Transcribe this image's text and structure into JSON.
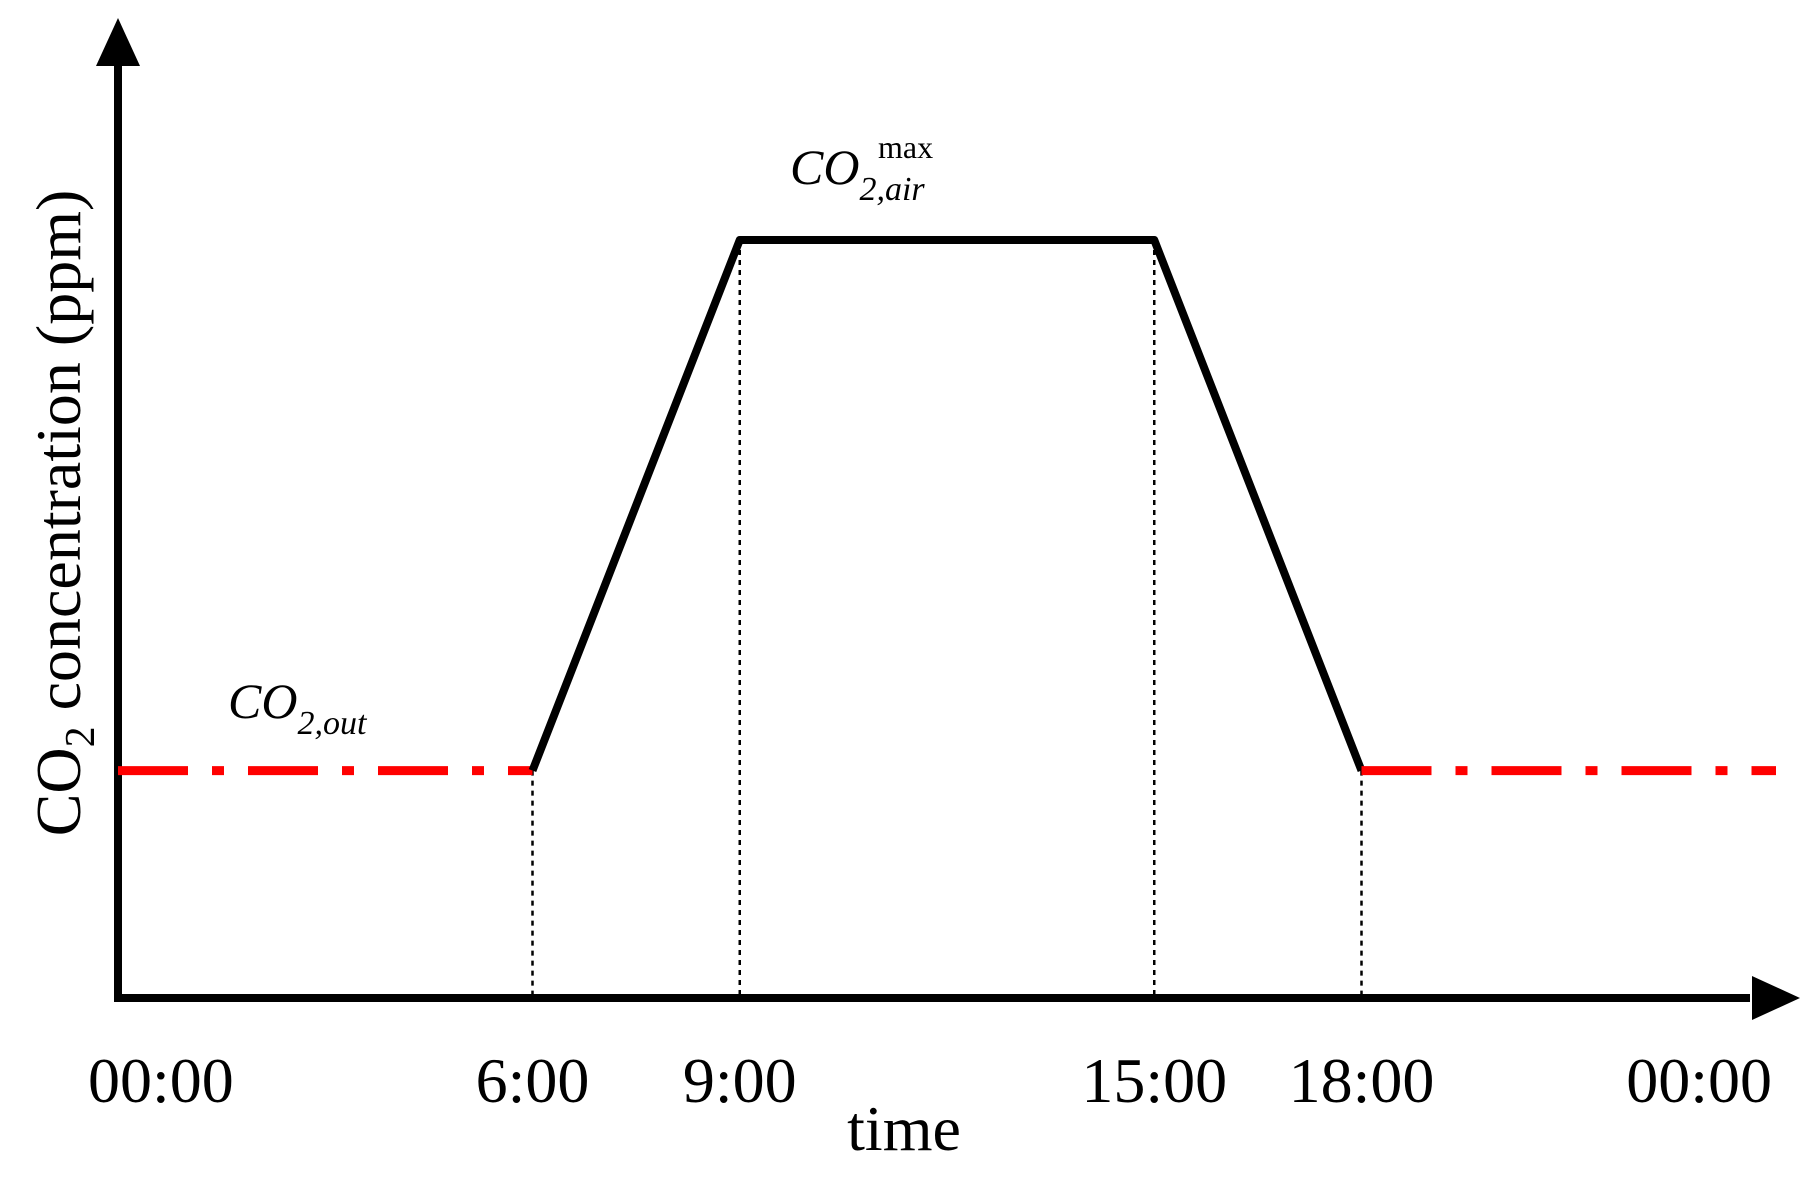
{
  "chart_data": {
    "type": "line",
    "title": "",
    "xlabel": "time",
    "ylabel": {
      "prefix": "CO",
      "subscript": "2",
      "suffix": " concentration (ppm)"
    },
    "x_ticks": [
      {
        "label": "00:00",
        "hour": 0
      },
      {
        "label": "6:00",
        "hour": 6
      },
      {
        "label": "9:00",
        "hour": 9
      },
      {
        "label": "15:00",
        "hour": 15
      },
      {
        "label": "18:00",
        "hour": 18
      },
      {
        "label": "00:00",
        "hour": 24
      }
    ],
    "xlim": [
      0,
      24
    ],
    "ylim": [
      0,
      1
    ],
    "y_ticks": [],
    "grid": false,
    "series": [
      {
        "id": "outdoor-morning",
        "style": "dash-dot",
        "color": "#ff0000",
        "points": [
          {
            "hour": 0,
            "value": 0.3
          },
          {
            "hour": 6,
            "value": 0.3
          }
        ]
      },
      {
        "id": "indoor",
        "style": "solid",
        "color": "#000000",
        "points": [
          {
            "hour": 6,
            "value": 0.3
          },
          {
            "hour": 9,
            "value": 1.0
          },
          {
            "hour": 15,
            "value": 1.0
          },
          {
            "hour": 18,
            "value": 0.3
          }
        ]
      },
      {
        "id": "outdoor-evening",
        "style": "dash-dot",
        "color": "#ff0000",
        "points": [
          {
            "hour": 18,
            "value": 0.3
          },
          {
            "hour": 24,
            "value": 0.3
          }
        ]
      }
    ],
    "guide_lines": {
      "style": "dotted",
      "color": "#000000",
      "hours": [
        6,
        9,
        15,
        18
      ]
    },
    "annotations": [
      {
        "id": "co2-out",
        "base": "CO",
        "subscript": "2,out",
        "superscript": ""
      },
      {
        "id": "co2-air-max",
        "base": "CO",
        "subscript": "2,air",
        "superscript": "max"
      }
    ]
  }
}
